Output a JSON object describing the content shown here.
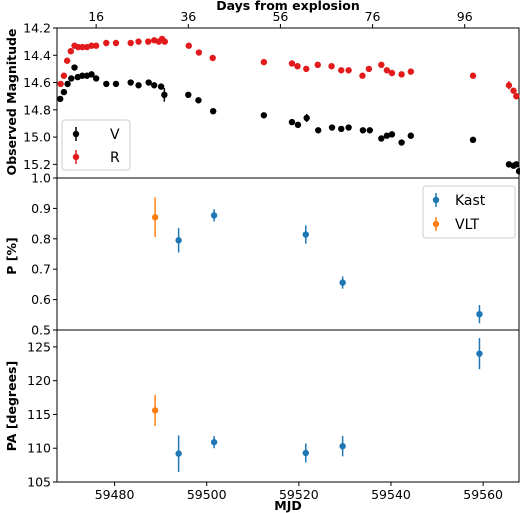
{
  "colors": {
    "V": "#000000",
    "R": "#e31a1c",
    "Kast": "#1f77b4",
    "VLT": "#ff7f0e"
  },
  "chart_data": [
    {
      "type": "scatter",
      "panel": "magnitude",
      "xlabel": "MJD",
      "ylabel": "Observed Magnitude",
      "top_xlabel": "Days from explosion",
      "top_ticks": [
        "16",
        "36",
        "56",
        "76",
        "96"
      ],
      "top_tick_values": [
        59476,
        59496,
        59516,
        59536,
        59556
      ],
      "xlim": [
        59467.5,
        59568.0
      ],
      "ylim": [
        15.3,
        14.2
      ],
      "y_inverted": true,
      "yticks": [
        "14.2",
        "14.4",
        "14.6",
        "14.8",
        "15.0",
        "15.2"
      ],
      "ytick_values": [
        14.2,
        14.4,
        14.6,
        14.8,
        15.0,
        15.2
      ],
      "legend_position": "lower-left",
      "series": [
        {
          "name": "V",
          "color": "#000000",
          "points": [
            {
              "x": 59468.2,
              "y": 14.72
            },
            {
              "x": 59469.0,
              "y": 14.67
            },
            {
              "x": 59469.8,
              "y": 14.61
            },
            {
              "x": 59470.6,
              "y": 14.57
            },
            {
              "x": 59471.3,
              "y": 14.49,
              "err": 0.02
            },
            {
              "x": 59472.0,
              "y": 14.56
            },
            {
              "x": 59473.0,
              "y": 14.55
            },
            {
              "x": 59474.0,
              "y": 14.55
            },
            {
              "x": 59475.0,
              "y": 14.54
            },
            {
              "x": 59476.0,
              "y": 14.57
            },
            {
              "x": 59478.2,
              "y": 14.61
            },
            {
              "x": 59480.3,
              "y": 14.61
            },
            {
              "x": 59483.5,
              "y": 14.6
            },
            {
              "x": 59485.2,
              "y": 14.62
            },
            {
              "x": 59487.4,
              "y": 14.6
            },
            {
              "x": 59488.6,
              "y": 14.62
            },
            {
              "x": 59490.1,
              "y": 14.63,
              "err": 0.02
            },
            {
              "x": 59490.8,
              "y": 14.69,
              "err": 0.05
            },
            {
              "x": 59496.0,
              "y": 14.69,
              "err": 0.02
            },
            {
              "x": 59498.2,
              "y": 14.73,
              "err": 0.02
            },
            {
              "x": 59501.4,
              "y": 14.81
            },
            {
              "x": 59512.4,
              "y": 14.84
            },
            {
              "x": 59518.5,
              "y": 14.89
            },
            {
              "x": 59519.8,
              "y": 14.91
            },
            {
              "x": 59521.7,
              "y": 14.86,
              "err": 0.03
            },
            {
              "x": 59524.2,
              "y": 14.95
            },
            {
              "x": 59527.2,
              "y": 14.93,
              "err": 0.02
            },
            {
              "x": 59529.2,
              "y": 14.94
            },
            {
              "x": 59530.8,
              "y": 14.93
            },
            {
              "x": 59533.9,
              "y": 14.95
            },
            {
              "x": 59535.4,
              "y": 14.95
            },
            {
              "x": 59537.9,
              "y": 15.01,
              "err": 0.02
            },
            {
              "x": 59539.1,
              "y": 14.99
            },
            {
              "x": 59540.2,
              "y": 14.98
            },
            {
              "x": 59542.3,
              "y": 15.04
            },
            {
              "x": 59544.3,
              "y": 14.99
            },
            {
              "x": 59557.8,
              "y": 15.02
            },
            {
              "x": 59565.6,
              "y": 15.2
            },
            {
              "x": 59566.6,
              "y": 15.21
            },
            {
              "x": 59567.2,
              "y": 15.2
            },
            {
              "x": 59567.8,
              "y": 15.25
            }
          ]
        },
        {
          "name": "R",
          "color": "#e31a1c",
          "points": [
            {
              "x": 59468.3,
              "y": 14.61
            },
            {
              "x": 59469.0,
              "y": 14.55
            },
            {
              "x": 59469.7,
              "y": 14.44
            },
            {
              "x": 59470.5,
              "y": 14.37
            },
            {
              "x": 59471.3,
              "y": 14.33
            },
            {
              "x": 59472.1,
              "y": 14.34
            },
            {
              "x": 59473.0,
              "y": 14.34
            },
            {
              "x": 59474.0,
              "y": 14.34
            },
            {
              "x": 59475.0,
              "y": 14.33
            },
            {
              "x": 59476.0,
              "y": 14.33
            },
            {
              "x": 59478.2,
              "y": 14.31
            },
            {
              "x": 59480.3,
              "y": 14.31
            },
            {
              "x": 59483.5,
              "y": 14.31
            },
            {
              "x": 59485.2,
              "y": 14.3
            },
            {
              "x": 59487.3,
              "y": 14.3
            },
            {
              "x": 59488.6,
              "y": 14.29
            },
            {
              "x": 59489.6,
              "y": 14.3
            },
            {
              "x": 59490.3,
              "y": 14.28
            },
            {
              "x": 59490.9,
              "y": 14.3
            },
            {
              "x": 59496.1,
              "y": 14.33,
              "err": 0.02
            },
            {
              "x": 59498.3,
              "y": 14.38
            },
            {
              "x": 59501.3,
              "y": 14.42
            },
            {
              "x": 59512.4,
              "y": 14.45
            },
            {
              "x": 59518.5,
              "y": 14.46
            },
            {
              "x": 59519.7,
              "y": 14.48
            },
            {
              "x": 59521.6,
              "y": 14.5
            },
            {
              "x": 59524.1,
              "y": 14.47
            },
            {
              "x": 59527.1,
              "y": 14.48
            },
            {
              "x": 59529.2,
              "y": 14.51
            },
            {
              "x": 59530.8,
              "y": 14.51
            },
            {
              "x": 59533.8,
              "y": 14.55
            },
            {
              "x": 59535.2,
              "y": 14.5
            },
            {
              "x": 59537.9,
              "y": 14.47,
              "err": 0.02
            },
            {
              "x": 59539.1,
              "y": 14.51
            },
            {
              "x": 59540.2,
              "y": 14.53
            },
            {
              "x": 59542.3,
              "y": 14.54
            },
            {
              "x": 59544.3,
              "y": 14.52
            },
            {
              "x": 59557.8,
              "y": 14.55
            },
            {
              "x": 59565.6,
              "y": 14.62,
              "err": 0.03
            },
            {
              "x": 59566.6,
              "y": 14.66
            },
            {
              "x": 59567.2,
              "y": 14.7
            }
          ]
        }
      ]
    },
    {
      "type": "scatter",
      "panel": "polarization",
      "ylabel": "P [%]",
      "xlim": [
        59467.5,
        59568.0
      ],
      "ylim": [
        0.5,
        1.0
      ],
      "yticks": [
        "0.5",
        "0.6",
        "0.7",
        "0.8",
        "0.9",
        "1.0"
      ],
      "ytick_values": [
        0.5,
        0.6,
        0.7,
        0.8,
        0.9,
        1.0
      ],
      "legend_position": "upper-right",
      "series": [
        {
          "name": "Kast",
          "color": "#1f77b4",
          "points": [
            {
              "x": 59493.9,
              "y": 0.795,
              "err": 0.04
            },
            {
              "x": 59501.6,
              "y": 0.877,
              "err": 0.02
            },
            {
              "x": 59521.5,
              "y": 0.814,
              "err": 0.03
            },
            {
              "x": 59529.5,
              "y": 0.656,
              "err": 0.02
            },
            {
              "x": 59559.2,
              "y": 0.552,
              "err": 0.03
            }
          ]
        },
        {
          "name": "VLT",
          "color": "#ff7f0e",
          "points": [
            {
              "x": 59488.8,
              "y": 0.871,
              "err": 0.065
            }
          ]
        }
      ]
    },
    {
      "type": "scatter",
      "panel": "position-angle",
      "ylabel": "PA [degrees]",
      "xlabel": "MJD",
      "xlim": [
        59467.5,
        59568.0
      ],
      "ylim": [
        105,
        127.5
      ],
      "yticks": [
        "105",
        "110",
        "115",
        "120",
        "125"
      ],
      "ytick_values": [
        105,
        110,
        115,
        120,
        125
      ],
      "xticks": [
        "59480",
        "59500",
        "59520",
        "59540",
        "59560"
      ],
      "xtick_values": [
        59480,
        59500,
        59520,
        59540,
        59560
      ],
      "series": [
        {
          "name": "Kast",
          "color": "#1f77b4",
          "points": [
            {
              "x": 59493.9,
              "y": 109.2,
              "err": 2.7
            },
            {
              "x": 59501.6,
              "y": 110.9,
              "err": 0.9
            },
            {
              "x": 59521.5,
              "y": 109.3,
              "err": 1.4
            },
            {
              "x": 59529.5,
              "y": 110.3,
              "err": 1.5
            },
            {
              "x": 59559.2,
              "y": 124.0,
              "err": 2.3
            }
          ]
        },
        {
          "name": "VLT",
          "color": "#ff7f0e",
          "points": [
            {
              "x": 59488.8,
              "y": 115.6,
              "err": 2.3
            }
          ]
        }
      ]
    }
  ]
}
